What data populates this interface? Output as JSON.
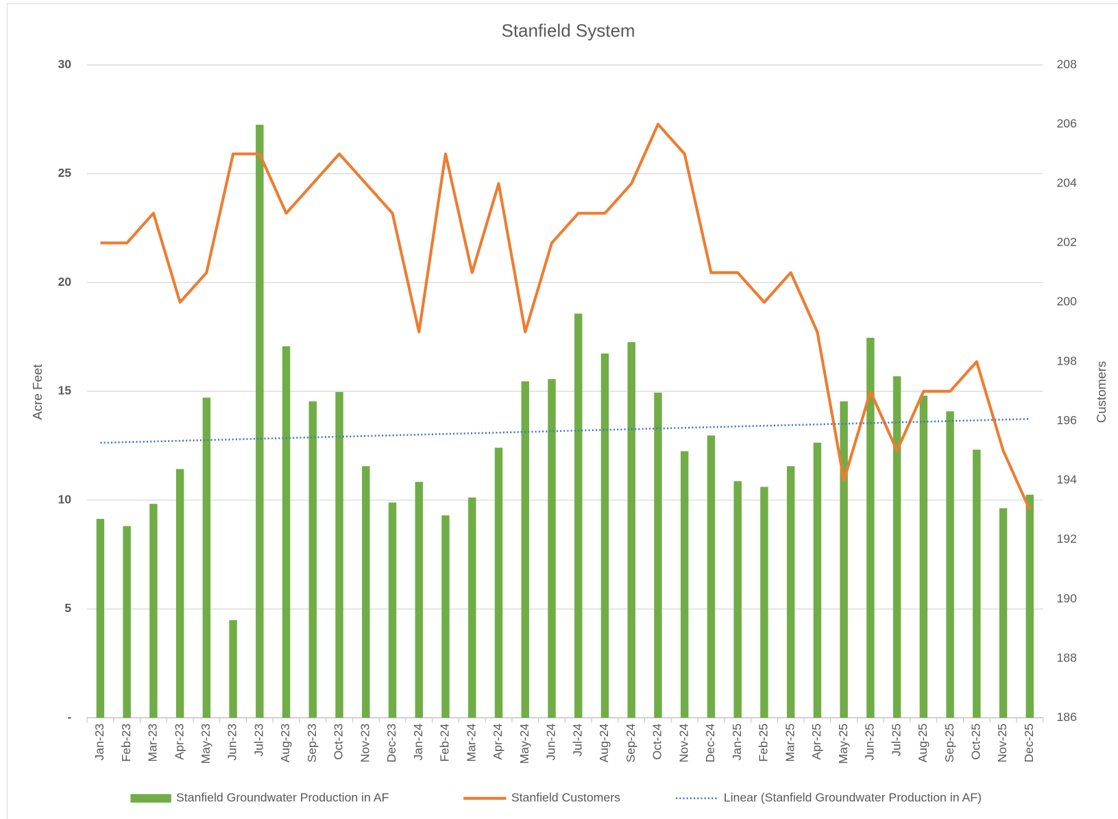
{
  "chart_data": {
    "type": "bar-line",
    "title": "Stanfield System",
    "y_label": "Acre Feet",
    "y2_label": "Customers",
    "categories": [
      "Jan-23",
      "Feb-23",
      "Mar-23",
      "Apr-23",
      "May-23",
      "Jun-23",
      "Jul-23",
      "Aug-23",
      "Sep-23",
      "Oct-23",
      "Nov-23",
      "Dec-23",
      "Jan-24",
      "Feb-24",
      "Mar-24",
      "Apr-24",
      "May-24",
      "Jun-24",
      "Jul-24",
      "Aug-24",
      "Sep-24",
      "Oct-24",
      "Nov-24",
      "Dec-24",
      "Jan-25",
      "Feb-25",
      "Mar-25",
      "Apr-25",
      "May-25",
      "Jun-25",
      "Jul-25",
      "Aug-25",
      "Sep-25",
      "Oct-25",
      "Nov-25",
      "Dec-25"
    ],
    "series": [
      {
        "name": "Stanfield Groundwater Production in AF",
        "type": "bar",
        "color": "#70ad47",
        "values": [
          9.14,
          8.81,
          9.83,
          11.43,
          14.71,
          4.49,
          27.25,
          17.07,
          14.54,
          14.97,
          11.56,
          9.89,
          10.84,
          9.3,
          10.12,
          12.41,
          15.46,
          15.56,
          18.57,
          16.74,
          17.26,
          14.94,
          12.25,
          12.97,
          10.87,
          10.61,
          11.56,
          12.64,
          14.54,
          17.46,
          15.69,
          14.8,
          14.08,
          12.32,
          9.63,
          10.25
        ]
      },
      {
        "name": "Stanfield Customers",
        "type": "line",
        "axis": "y2",
        "color": "#ed7d31",
        "values": [
          202,
          202,
          203,
          200,
          201,
          205,
          205,
          203,
          204,
          205,
          204,
          203,
          199,
          205,
          201,
          204,
          199,
          202,
          203,
          203,
          204,
          206,
          205,
          201,
          201,
          200,
          201,
          199,
          194,
          197,
          195,
          197,
          197,
          198,
          195,
          193
        ]
      },
      {
        "name": "Linear (Stanfield Groundwater Production in AF)",
        "type": "trendline",
        "trendline": "linear",
        "color": "#4472c4"
      }
    ],
    "ylim": [
      0,
      30
    ],
    "yticks": [
      {
        "value": 0,
        "label": "-"
      },
      5,
      10,
      15,
      20,
      25,
      30
    ],
    "y2lim": [
      186,
      208
    ],
    "y2ticks": [
      186,
      188,
      190,
      192,
      194,
      196,
      198,
      200,
      202,
      204,
      206,
      208
    ],
    "grid": true,
    "legend": "bottom"
  }
}
